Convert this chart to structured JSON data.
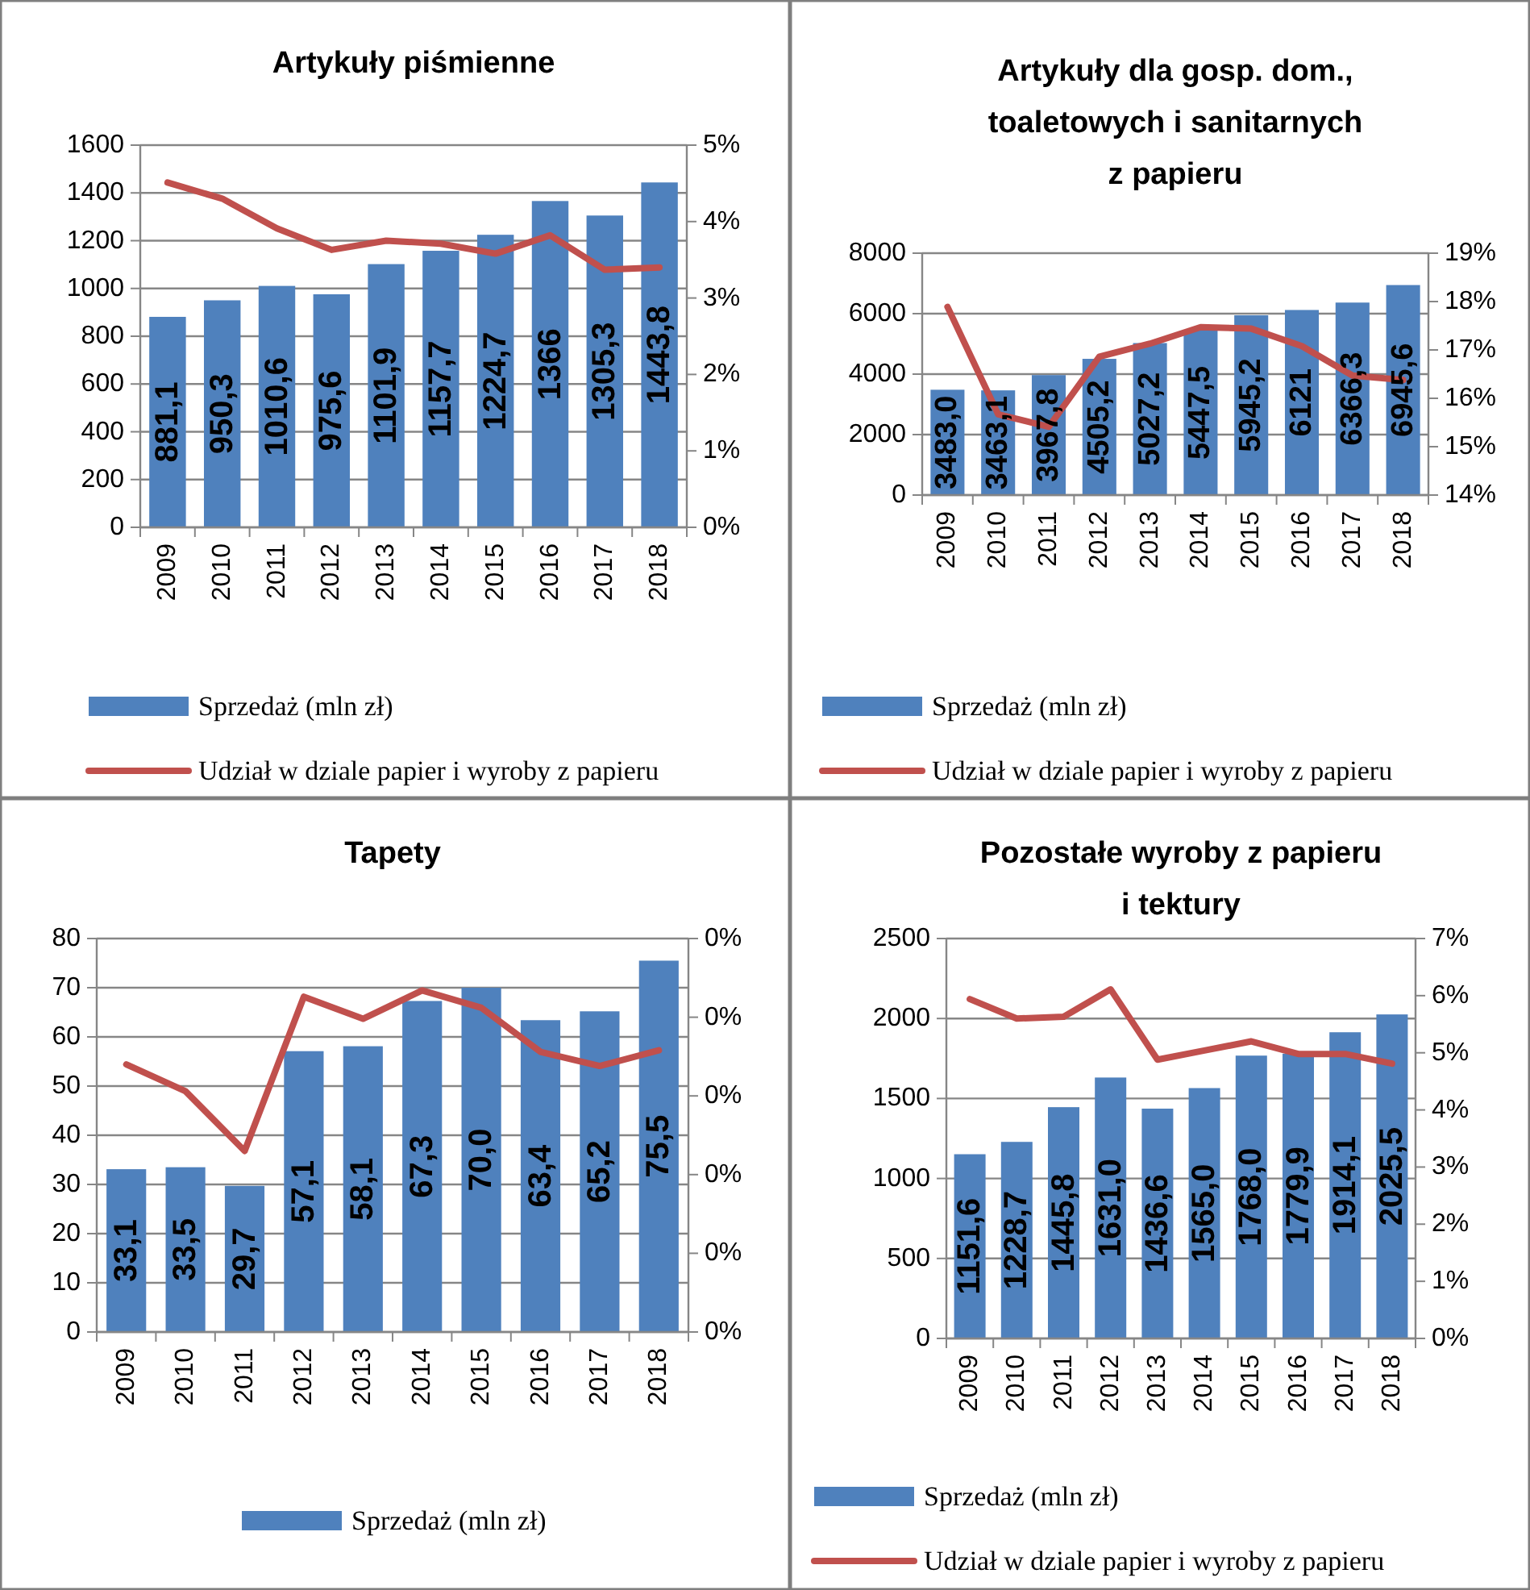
{
  "chart_data": [
    {
      "type": "bar",
      "title": "Artykuły piśmienne",
      "categories": [
        "2009",
        "2010",
        "2011",
        "2012",
        "2013",
        "2014",
        "2015",
        "2016",
        "2017",
        "2018"
      ],
      "series": [
        {
          "name": "Sprzedaż (mln zł)",
          "color": "#4f81bd",
          "values": [
            881.1,
            950.3,
            1010.6,
            975.6,
            1101.9,
            1157.7,
            1224.7,
            1366,
            1305.3,
            1443.8
          ],
          "value_labels": [
            "881,1",
            "950,3",
            "1010,6",
            "975,6",
            "1101,9",
            "1157,7",
            "1224,7",
            "1366",
            "1305,3",
            "1443,8"
          ]
        },
        {
          "name": "Udział w dziale papier i wyroby z papieru",
          "type": "line",
          "axis": "y2",
          "color": "#c0504d",
          "values": [
            4.51,
            4.3,
            3.91,
            3.63,
            3.75,
            3.71,
            3.58,
            3.82,
            3.37,
            3.4
          ]
        }
      ],
      "ylim": [
        0,
        1600
      ],
      "yticks": [
        0,
        200,
        400,
        600,
        800,
        1000,
        1200,
        1400,
        1600
      ],
      "y2lim": [
        0,
        5
      ],
      "y2ticks": [
        {
          "value": 0,
          "label": "0%"
        },
        {
          "value": 1,
          "label": "1%"
        },
        {
          "value": 2,
          "label": "2%"
        },
        {
          "value": 3,
          "label": "3%"
        },
        {
          "value": 4,
          "label": "4%"
        },
        {
          "value": 5,
          "label": "5%"
        }
      ],
      "grid": "y",
      "legend": "bottom"
    },
    {
      "type": "bar",
      "title": "Artykuły dla gosp. dom.,\ntoaletowych i sanitarnych\nz papieru",
      "categories": [
        "2009",
        "2010",
        "2011",
        "2012",
        "2013",
        "2014",
        "2015",
        "2016",
        "2017",
        "2018"
      ],
      "series": [
        {
          "name": "Sprzedaż (mln zł)",
          "color": "#4f81bd",
          "values": [
            3483.0,
            3463.1,
            3967.8,
            4505.2,
            5027.2,
            5447.5,
            5945.2,
            6121,
            6366.3,
            6945.6
          ],
          "value_labels": [
            "3483,0",
            "3463,1",
            "3967,8",
            "4505,2",
            "5027,2",
            "5447,5",
            "5945,2",
            "6121",
            "6366,3",
            "6945,6"
          ]
        },
        {
          "name": "Udział w dziale papier i wyroby z papieru",
          "type": "line",
          "axis": "y2",
          "color": "#c0504d",
          "values": [
            17.89,
            15.67,
            15.41,
            16.86,
            17.13,
            17.47,
            17.44,
            17.08,
            16.47,
            16.38
          ]
        }
      ],
      "ylim": [
        0,
        8000
      ],
      "yticks": [
        0,
        2000,
        4000,
        6000,
        8000
      ],
      "y2lim": [
        14,
        19
      ],
      "y2ticks": [
        {
          "value": 14,
          "label": "14%"
        },
        {
          "value": 15,
          "label": "15%"
        },
        {
          "value": 16,
          "label": "16%"
        },
        {
          "value": 17,
          "label": "17%"
        },
        {
          "value": 18,
          "label": "18%"
        },
        {
          "value": 19,
          "label": "19%"
        }
      ],
      "grid": "y",
      "legend": "bottom"
    },
    {
      "type": "bar",
      "title": "Tapety",
      "categories": [
        "2009",
        "2010",
        "2011",
        "2012",
        "2013",
        "2014",
        "2015",
        "2016",
        "2017",
        "2018"
      ],
      "series": [
        {
          "name": "Sprzedaż (mln zł)",
          "color": "#4f81bd",
          "values": [
            33.1,
            33.5,
            29.7,
            57.1,
            58.1,
            67.3,
            70.0,
            63.4,
            65.2,
            75.5
          ],
          "value_labels": [
            "33,1",
            "33,5",
            "29,7",
            "57,1",
            "58,1",
            "67,3",
            "70,0",
            "63,4",
            "65,2",
            "75,5"
          ]
        },
        {
          "type": "line",
          "axis": "y2",
          "color": "#c0504d",
          "values": [
            0.17,
            0.153,
            0.115,
            0.213,
            0.199,
            0.217,
            0.206,
            0.178,
            0.169,
            0.179
          ]
        }
      ],
      "ylim": [
        0,
        80
      ],
      "yticks": [
        0,
        10,
        20,
        30,
        40,
        50,
        60,
        70,
        80
      ],
      "y2lim": [
        0,
        0.25
      ],
      "y2ticks": [
        {
          "value": 0,
          "label": "0%"
        },
        {
          "value": 0.05,
          "label": "0%"
        },
        {
          "value": 0.1,
          "label": "0%"
        },
        {
          "value": 0.15,
          "label": "0%"
        },
        {
          "value": 0.2,
          "label": "0%"
        },
        {
          "value": 0.25,
          "label": "0%"
        }
      ],
      "grid": "y",
      "legend": "bottom"
    },
    {
      "type": "bar",
      "title": "Pozostałe wyroby z papieru\ni tektury",
      "categories": [
        "2009",
        "2010",
        "2011",
        "2012",
        "2013",
        "2014",
        "2015",
        "2016",
        "2017",
        "2018"
      ],
      "series": [
        {
          "name": "Sprzedaż (mln zł)",
          "color": "#4f81bd",
          "values": [
            1151.6,
            1228.7,
            1445.8,
            1631.0,
            1436.6,
            1565.0,
            1768.0,
            1779.9,
            1914.1,
            2025.5
          ],
          "value_labels": [
            "1151,6",
            "1228,7",
            "1445,8",
            "1631,0",
            "1436,6",
            "1565,0",
            "1768,0",
            "1779,9",
            "1914,1",
            "2025,5"
          ]
        },
        {
          "name": "Udział w dziale papier i wyroby z papieru",
          "type": "line",
          "axis": "y2",
          "color": "#c0504d",
          "values": [
            5.94,
            5.6,
            5.63,
            6.11,
            4.88,
            5.04,
            5.2,
            4.98,
            4.98,
            4.81
          ]
        }
      ],
      "ylim": [
        0,
        2500
      ],
      "yticks": [
        0,
        500,
        1000,
        1500,
        2000,
        2500
      ],
      "y2lim": [
        0,
        7
      ],
      "y2ticks": [
        {
          "value": 0,
          "label": "0%"
        },
        {
          "value": 1,
          "label": "1%"
        },
        {
          "value": 2,
          "label": "2%"
        },
        {
          "value": 3,
          "label": "3%"
        },
        {
          "value": 4,
          "label": "4%"
        },
        {
          "value": 5,
          "label": "5%"
        },
        {
          "value": 6,
          "label": "6%"
        },
        {
          "value": 7,
          "label": "7%"
        }
      ],
      "grid": "y",
      "legend": "bottom"
    }
  ]
}
